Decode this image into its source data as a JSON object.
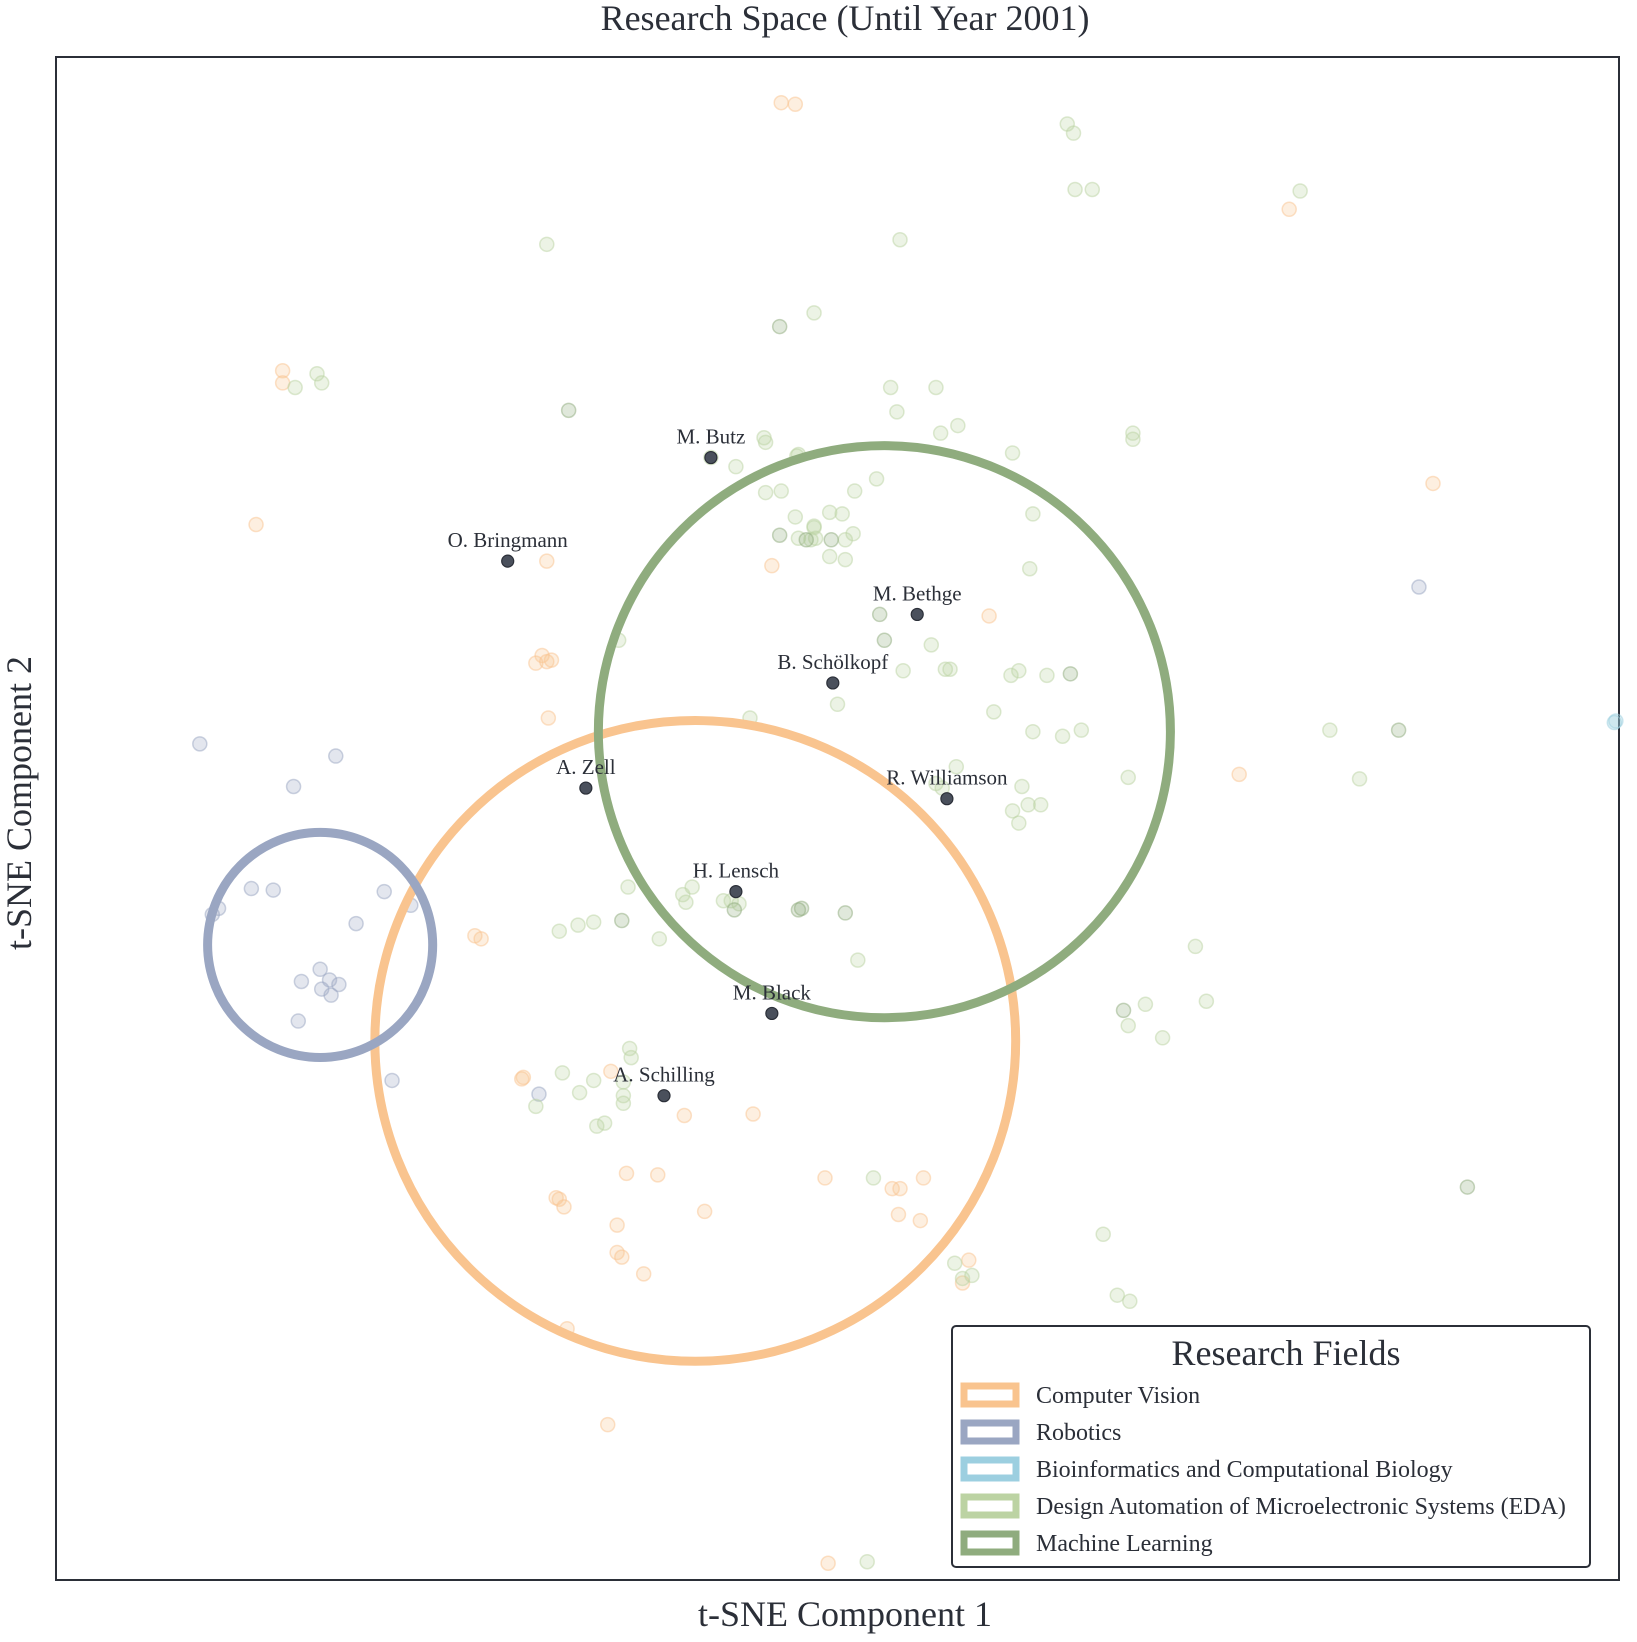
{
  "chart_data": {
    "type": "scatter",
    "title": "Research Space (Until Year 2001)",
    "xlabel": "t-SNE Component 1",
    "ylabel": "t-SNE Component 2",
    "xlim": [
      0,
      1000
    ],
    "ylim": [
      0,
      1000
    ],
    "grid": false,
    "legend": {
      "title": "Research Fields",
      "placement": "lower-right",
      "entries": [
        {
          "label": "Computer Vision",
          "color": "#f9c48f"
        },
        {
          "label": "Robotics",
          "color": "#9aa6c2"
        },
        {
          "label": "Bioinformatics and Computational Biology",
          "color": "#9ccfe0"
        },
        {
          "label": "Design Automation of Microelectronic Systems (EDA)",
          "color": "#bcd3a3"
        },
        {
          "label": "Machine Learning",
          "color": "#8fac7e"
        }
      ]
    },
    "field_circles": [
      {
        "field": "Computer Vision",
        "color": "#f9c48f",
        "cx": 409,
        "cy": 354,
        "r": 205
      },
      {
        "field": "Robotics",
        "color": "#9aa6c2",
        "cx": 169,
        "cy": 417,
        "r": 72
      },
      {
        "field": "Machine Learning",
        "color": "#8fac7e",
        "cx": 530,
        "cy": 557,
        "r": 183
      }
    ],
    "authors": [
      {
        "name": "M. Butz",
        "x": 419,
        "y": 737
      },
      {
        "name": "O. Bringmann",
        "x": 289,
        "y": 669
      },
      {
        "name": "M. Bethge",
        "x": 551,
        "y": 634
      },
      {
        "name": "B. Schölkopf",
        "x": 497,
        "y": 589
      },
      {
        "name": "A. Zell",
        "x": 339,
        "y": 520
      },
      {
        "name": "R. Williamson",
        "x": 570,
        "y": 513
      },
      {
        "name": "H. Lensch",
        "x": 435,
        "y": 452
      },
      {
        "name": "M. Black",
        "x": 458,
        "y": 372
      },
      {
        "name": "A. Schilling",
        "x": 389,
        "y": 318
      }
    ],
    "series": [
      {
        "name": "Computer Vision",
        "color": "#f9c48f",
        "x": [
          464,
          473,
          145,
          145,
          128,
          789,
          881,
          314,
          458,
          307,
          311,
          314,
          317,
          315,
          597,
          757,
          272,
          268,
          402,
          320,
          322,
          355,
          446,
          535,
          540,
          539,
          553,
          299,
          298,
          415,
          580,
          584,
          327,
          353,
          376,
          359,
          362,
          385,
          365,
          494,
          325,
          359,
          492,
          555
        ],
        "y": [
          970,
          969,
          794,
          786,
          693,
          900,
          720,
          669,
          666,
          602,
          607,
          603,
          604,
          566,
          633,
          529,
          421,
          423,
          305,
          251,
          250,
          334,
          306,
          257,
          257,
          240,
          236,
          330,
          329,
          242,
          195,
          210,
          165,
          102,
          201,
          215,
          212,
          266,
          267,
          11,
          245,
          233,
          264,
          264
        ]
      },
      {
        "name": "Robotics",
        "color": "#9aa6c2",
        "x": [
          92,
          179,
          152,
          210,
          227,
          125,
          139,
          104,
          100,
          192,
          169,
          175,
          181,
          157,
          170,
          176,
          155,
          215,
          309,
          872
        ],
        "y": [
          549,
          541,
          521,
          452,
          443,
          454,
          453,
          441,
          437,
          431,
          401,
          394,
          391,
          393,
          388,
          384,
          367,
          328,
          319,
          652
        ]
      },
      {
        "name": "Bioinformatics and Computational Biology",
        "color": "#9ccfe0",
        "x": [
          997,
          998
        ],
        "y": [
          563,
          564
        ]
      },
      {
        "name": "Design Automation of Microelectronic Systems (EDA)",
        "color": "#bcd3a3",
        "x": [
          314,
          167,
          170,
          153,
          647,
          651,
          652,
          663,
          796,
          485,
          540,
          563,
          534,
          538,
          566,
          577,
          625,
          689,
          689,
          435,
          419,
          454,
          453,
          474,
          475,
          525,
          511,
          612,
          503,
          464,
          454,
          485,
          475,
          473,
          495,
          485,
          505,
          483,
          486,
          495,
          505,
          510,
          623,
          611,
          616,
          560,
          542,
          572,
          569,
          634,
          600,
          656,
          625,
          644,
          500,
          444,
          563,
          576,
          618,
          567,
          630,
          622,
          612,
          616,
          360,
          407,
          427,
          437,
          401,
          403,
          432,
          366,
          386,
          513,
          729,
          686,
          708,
          697,
          736,
          815,
          834,
          686,
          322,
          334,
          344,
          670,
          679,
          687,
          575,
          580,
          586,
          367,
          368,
          307,
          363,
          519,
          346,
          351,
          335,
          324,
          363,
          363,
          344,
          523
        ],
        "y": [
          877,
          792,
          786,
          783,
          956,
          950,
          913,
          913,
          912,
          832,
          880,
          783,
          783,
          767,
          753,
          758,
          700,
          749,
          753,
          731,
          737,
          747,
          750,
          738,
          739,
          723,
          715,
          740,
          700,
          715,
          714,
          692,
          684,
          698,
          701,
          691,
          683,
          683,
          684,
          672,
          670,
          687,
          664,
          594,
          597,
          614,
          597,
          598,
          598,
          594,
          570,
          558,
          557,
          554,
          575,
          566,
          523,
          534,
          521,
          520,
          509,
          509,
          505,
          497,
          617,
          455,
          446,
          444,
          450,
          445,
          446,
          455,
          421,
          407,
          416,
          364,
          356,
          378,
          380,
          558,
          526,
          527,
          426,
          430,
          432,
          227,
          187,
          183,
          208,
          198,
          200,
          349,
          343,
          311,
          327,
          12,
          298,
          300,
          320,
          333,
          313,
          318,
          328,
          264
        ]
      },
      {
        "name": "Machine Learning",
        "color": "#8fac7e",
        "x": [
          463,
          328,
          463,
          496,
          527,
          530,
          649,
          480,
          362,
          434,
          475,
          477,
          505,
          683,
          859,
          903
        ],
        "y": [
          823,
          768,
          686,
          683,
          634,
          617,
          595,
          683,
          433,
          440,
          440,
          441,
          438,
          374,
          558,
          258
        ]
      }
    ]
  }
}
